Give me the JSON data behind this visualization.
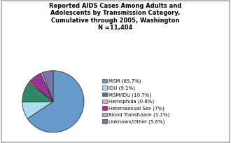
{
  "title": "Reported AIDS Cases Among Adults and\nAdolescents by Transmission Category,\nCumulative through 2005, Washington\nN =11,404",
  "slices": [
    65.7,
    9.1,
    10.7,
    0.8,
    7.0,
    1.1,
    5.6
  ],
  "labels": [
    "MSM (65.7%)",
    "IDU (9.1%)",
    "MSM/IDU (10.7%)",
    "Hemophilia (0.8%)",
    "Heterosexual Sex (7%)",
    "Blood Transfusion (1.1%)",
    "Unknown/Other (5.6%)"
  ],
  "colors": [
    "#6699CC",
    "#AADDEE",
    "#2E8B6A",
    "#F4AABC",
    "#993399",
    "#CCAACC",
    "#7777AA"
  ],
  "background_color": "#FFFFFF",
  "border_color": "#AAAAAA",
  "startangle": 90
}
